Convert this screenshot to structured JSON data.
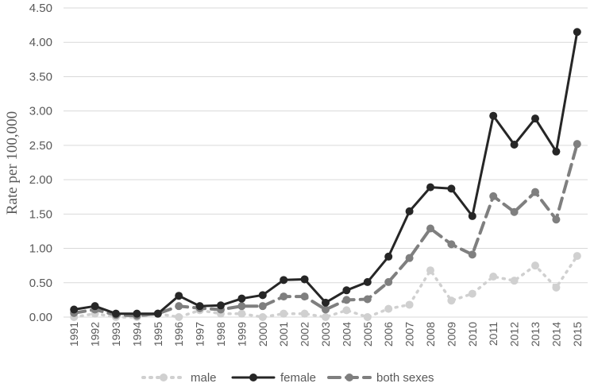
{
  "chart_data": {
    "type": "line",
    "title": "",
    "xlabel": "",
    "ylabel": "Rate per 100,000",
    "ylim": [
      0,
      4.5
    ],
    "yticks": [
      "0.00",
      "0.50",
      "1.00",
      "1.50",
      "2.00",
      "2.50",
      "3.00",
      "3.50",
      "4.00",
      "4.50"
    ],
    "grid": true,
    "legend_position": "bottom",
    "categories": [
      "1991",
      "1992",
      "1993",
      "1994",
      "1995",
      "1996",
      "1997",
      "1998",
      "1999",
      "2000",
      "2001",
      "2002",
      "2003",
      "2004",
      "2005",
      "2006",
      "2007",
      "2008",
      "2009",
      "2010",
      "2011",
      "2012",
      "2013",
      "2014",
      "2015"
    ],
    "series": [
      {
        "name": "male",
        "style": "dotted",
        "color": "#d0d0d0",
        "values": [
          0.0,
          0.05,
          0.0,
          0.0,
          0.05,
          0.0,
          0.1,
          0.05,
          0.05,
          0.0,
          0.05,
          0.05,
          0.0,
          0.1,
          0.0,
          0.12,
          0.18,
          0.68,
          0.24,
          0.34,
          0.59,
          0.53,
          0.75,
          0.43,
          0.89
        ]
      },
      {
        "name": "female",
        "style": "solid",
        "color": "#262626",
        "values": [
          0.11,
          0.16,
          0.05,
          0.05,
          0.05,
          0.31,
          0.16,
          0.17,
          0.27,
          0.32,
          0.54,
          0.55,
          0.21,
          0.39,
          0.51,
          0.88,
          1.54,
          1.89,
          1.87,
          1.47,
          2.93,
          2.51,
          2.89,
          2.41,
          4.15
        ]
      },
      {
        "name": "both sexes",
        "style": "dashed",
        "color": "#7f7f7f",
        "values": [
          0.06,
          0.11,
          0.03,
          0.02,
          0.05,
          0.16,
          0.13,
          0.11,
          0.16,
          0.16,
          0.3,
          0.3,
          0.11,
          0.25,
          0.26,
          0.51,
          0.86,
          1.29,
          1.06,
          0.91,
          1.76,
          1.53,
          1.82,
          1.42,
          2.52
        ]
      }
    ]
  }
}
